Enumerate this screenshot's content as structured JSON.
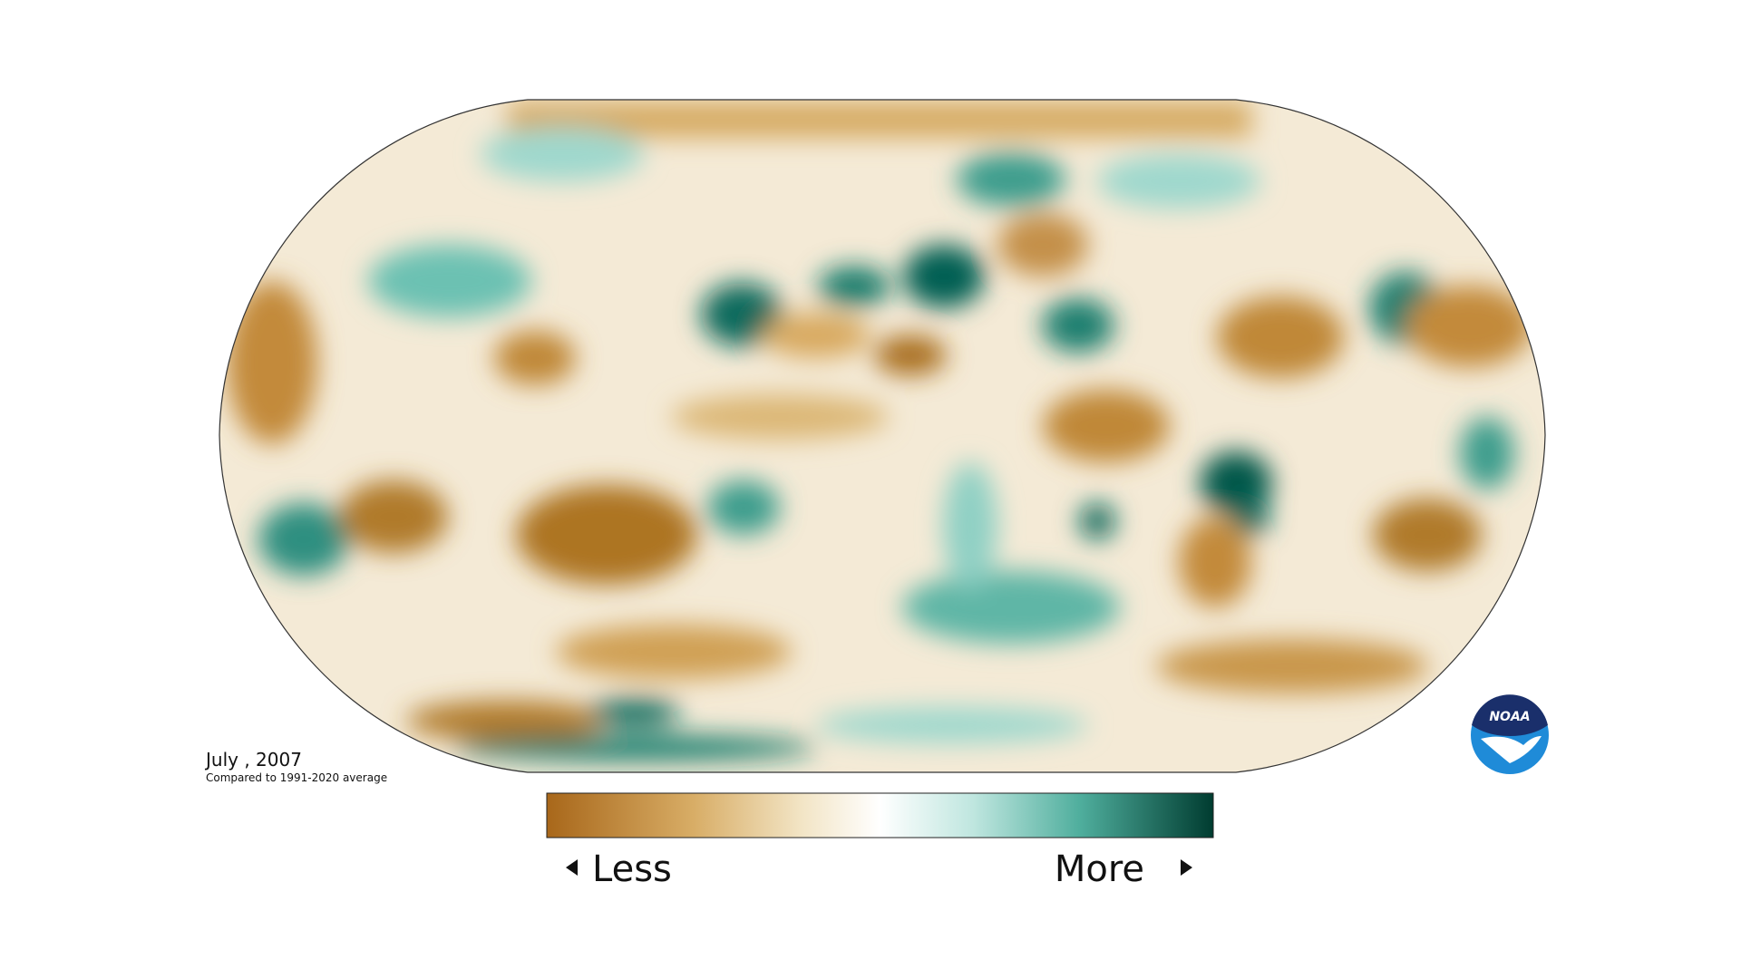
{
  "date_label": "July , 2007",
  "subtitle": "Compared to 1991-2020 average",
  "legend": {
    "less": "Less",
    "more": "More"
  },
  "logo": "NOAA"
}
